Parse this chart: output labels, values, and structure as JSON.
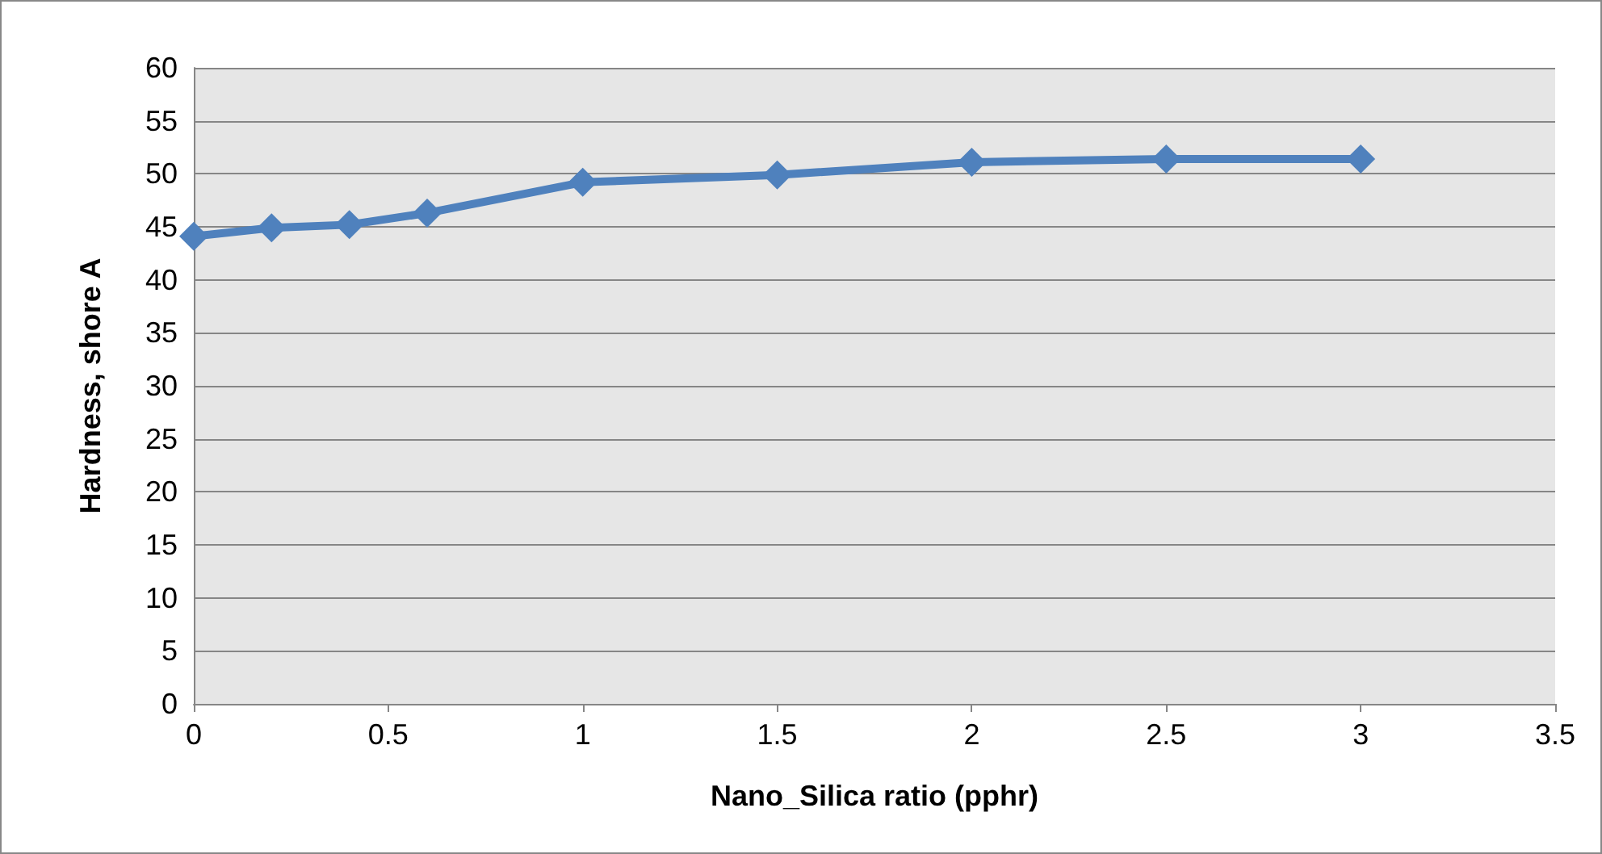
{
  "chart_data": {
    "type": "line",
    "xlabel": "Nano_Silica ratio (pphr)",
    "ylabel": "Hardness, shore A",
    "x": [
      0,
      0.2,
      0.4,
      0.6,
      1,
      1.5,
      2,
      2.5,
      3
    ],
    "series": [
      {
        "color": "#4f81bd",
        "values": [
          44.1,
          44.9,
          45.2,
          46.3,
          49.2,
          49.9,
          51.1,
          51.4,
          51.4
        ]
      }
    ],
    "xlim": [
      0,
      3.5
    ],
    "xticks": [
      0,
      0.5,
      1,
      1.5,
      2,
      2.5,
      3,
      3.5
    ],
    "ylim": [
      0,
      60
    ],
    "yticks": [
      0,
      5,
      10,
      15,
      20,
      25,
      30,
      35,
      40,
      45,
      50,
      55,
      60
    ],
    "grid": "y",
    "marker": "diamond",
    "line_style": "solid"
  }
}
